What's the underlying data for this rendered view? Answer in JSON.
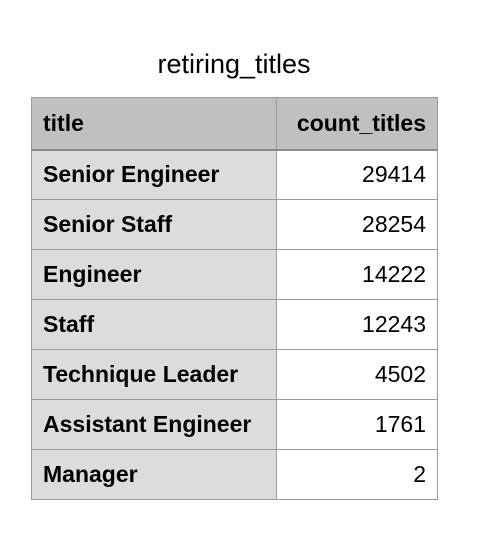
{
  "caption": "retiring_titles",
  "table": {
    "headers": [
      "title",
      "count_titles"
    ],
    "rows": [
      [
        "Senior Engineer",
        "29414"
      ],
      [
        "Senior Staff",
        "28254"
      ],
      [
        "Engineer",
        "14222"
      ],
      [
        "Staff",
        "12243"
      ],
      [
        "Technique Leader",
        "4502"
      ],
      [
        "Assistant Engineer",
        "1761"
      ],
      [
        "Manager",
        "2"
      ]
    ]
  }
}
